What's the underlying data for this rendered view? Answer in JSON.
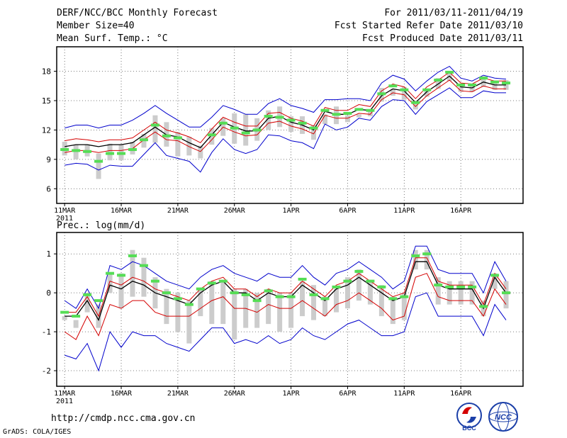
{
  "header": {
    "title": "DERF/NCC/BCC Monthly Forecast",
    "members": "Member Size=40",
    "var_top": "Mean Surf. Temp.: °C",
    "period": "For 2011/03/11-2011/04/19",
    "refer": "Fcst Started Refer Date 2011/03/10",
    "produced": "Fcst Produced Date 2011/03/11"
  },
  "footer": {
    "url": "http://cmdp.ncc.cma.gov.cn",
    "grads": "GrADS: COLA/IGES",
    "logo_bcc": "BCC",
    "logo_ncc": "NCC"
  },
  "colors": {
    "mean": "#000000",
    "spread": "#d40000",
    "extreme": "#0000cc",
    "obs": "#55dd55",
    "box": "#cccccc",
    "grid": "#555555"
  },
  "chart_data": [
    {
      "type": "line",
      "title": "Mean Surf. Temp.: °C",
      "ylim": [
        4.5,
        20.5
      ],
      "yticks": [
        6,
        9,
        12,
        15,
        18
      ],
      "xlim": [
        0.3,
        41.5
      ],
      "x_ticks": [
        1,
        6,
        11,
        16,
        21,
        26,
        31,
        36
      ],
      "x_tick_labels": [
        "11MAR",
        "16MAR",
        "21MAR",
        "26MAR",
        "1APR",
        "6APR",
        "11APR",
        "16APR"
      ],
      "year_label": "2011",
      "mean": [
        10.3,
        10.5,
        10.5,
        10.3,
        10.5,
        10.5,
        10.7,
        11.5,
        12.3,
        11.5,
        11.3,
        10.7,
        10.2,
        11.5,
        12.8,
        12.3,
        11.9,
        11.9,
        13.2,
        13.4,
        12.8,
        12.5,
        12.0,
        13.9,
        13.6,
        13.6,
        14.1,
        14.0,
        15.5,
        16.2,
        16.0,
        14.8,
        15.9,
        16.7,
        17.5,
        16.4,
        16.3,
        16.9,
        16.6,
        16.6
      ],
      "upper": [
        10.9,
        11.1,
        11.0,
        10.8,
        11.0,
        11.0,
        11.2,
        12.0,
        12.8,
        12.0,
        11.7,
        11.3,
        10.7,
        12.1,
        13.3,
        12.8,
        12.4,
        12.4,
        13.7,
        13.8,
        13.2,
        12.9,
        12.4,
        14.3,
        14.0,
        14.0,
        14.6,
        14.4,
        16.0,
        16.7,
        16.4,
        15.2,
        16.4,
        17.1,
        17.9,
        16.8,
        16.7,
        17.3,
        17.0,
        17.0
      ],
      "lower": [
        9.7,
        9.9,
        9.9,
        9.7,
        9.9,
        9.9,
        10.1,
        11.0,
        11.8,
        11.0,
        10.9,
        10.3,
        9.8,
        11.0,
        12.3,
        11.8,
        11.4,
        11.5,
        12.7,
        12.9,
        12.4,
        12.1,
        11.6,
        13.5,
        13.2,
        13.2,
        13.7,
        13.6,
        15.1,
        15.8,
        15.6,
        14.4,
        15.5,
        16.3,
        17.1,
        16.0,
        15.9,
        16.5,
        16.2,
        16.2
      ],
      "max": [
        12.2,
        12.5,
        12.5,
        12.2,
        12.5,
        12.5,
        13.0,
        13.7,
        14.5,
        13.7,
        13.0,
        12.3,
        12.3,
        13.3,
        14.5,
        14.1,
        13.6,
        13.6,
        14.7,
        15.2,
        14.5,
        14.2,
        13.8,
        15.1,
        15.1,
        15.2,
        15.2,
        15.0,
        16.8,
        17.6,
        17.2,
        16.0,
        17.0,
        17.9,
        18.5,
        17.3,
        17.0,
        17.6,
        17.3,
        17.2
      ],
      "min": [
        8.4,
        8.6,
        8.5,
        7.9,
        8.4,
        8.3,
        8.3,
        9.5,
        10.7,
        9.4,
        9.1,
        8.8,
        7.7,
        9.7,
        11.1,
        10.0,
        9.6,
        10.0,
        11.5,
        11.4,
        10.9,
        10.7,
        10.1,
        12.6,
        12.0,
        12.3,
        13.2,
        13.0,
        14.4,
        15.1,
        15.0,
        13.6,
        14.9,
        15.6,
        16.3,
        15.3,
        15.3,
        16.0,
        15.8,
        15.8
      ],
      "box_high": [
        10.8,
        10.5,
        10.5,
        9.6,
        10.6,
        10.5,
        10.8,
        11.6,
        13.5,
        12.8,
        11.8,
        11.3,
        10.4,
        12.2,
        13.2,
        13.7,
        13.6,
        13.2,
        14.0,
        14.4,
        13.4,
        13.4,
        12.5,
        13.6,
        14.4,
        13.5,
        13.6,
        14.1,
        16.3,
        16.2,
        16.4,
        15.0,
        16.1,
        17.3,
        17.8,
        16.4,
        16.6,
        17.5,
        17.0,
        17.1
      ],
      "box_low": [
        9.4,
        9.0,
        9.3,
        7.0,
        8.9,
        8.9,
        9.5,
        10.2,
        10.7,
        10.3,
        9.3,
        9.4,
        9.1,
        10.5,
        11.4,
        10.6,
        10.4,
        10.9,
        12.0,
        12.3,
        11.8,
        11.6,
        11.0,
        12.6,
        12.6,
        12.8,
        13.3,
        13.4,
        14.9,
        15.5,
        15.1,
        14.1,
        15.4,
        16.2,
        17.0,
        15.9,
        15.9,
        16.4,
        16.1,
        16.1
      ],
      "obs": [
        10.0,
        9.9,
        9.8,
        8.8,
        9.6,
        9.6,
        10.0,
        11.0,
        12.5,
        11.4,
        11.2,
        null,
        null,
        11.5,
        12.7,
        12.2,
        11.7,
        12.0,
        13.4,
        13.3,
        13.0,
        12.7,
        12.2,
        14.0,
        13.6,
        13.7,
        14.1,
        14.0,
        15.7,
        16.5,
        16.1,
        14.8,
        16.1,
        17.1,
        17.9,
        16.6,
        16.6,
        17.3,
        16.9,
        16.8
      ]
    },
    {
      "type": "line",
      "title": "Prec.: log(mm/d)",
      "ylim": [
        -2.4,
        1.55
      ],
      "yticks": [
        -2,
        -1,
        0,
        1
      ],
      "xlim": [
        0.3,
        41.5
      ],
      "x_ticks": [
        1,
        6,
        11,
        16,
        21,
        26,
        31,
        36
      ],
      "x_tick_labels": [
        "11MAR",
        "16MAR",
        "21MAR",
        "26MAR",
        "1APR",
        "6APR",
        "11APR",
        "16APR"
      ],
      "year_label": "2011",
      "mean": [
        -0.6,
        -0.6,
        -0.2,
        -0.7,
        0.2,
        0.1,
        0.3,
        0.2,
        0.0,
        -0.1,
        -0.2,
        -0.3,
        0.0,
        0.2,
        0.3,
        0.0,
        0.0,
        -0.2,
        0.0,
        -0.1,
        -0.1,
        0.2,
        0.0,
        -0.2,
        0.1,
        0.2,
        0.4,
        0.2,
        0.0,
        -0.2,
        -0.1,
        0.8,
        0.8,
        0.2,
        0.1,
        0.1,
        0.1,
        -0.4,
        0.4,
        0.0
      ],
      "upper": [
        -0.5,
        -0.5,
        -0.1,
        -0.6,
        0.3,
        0.2,
        0.4,
        0.3,
        0.1,
        0.0,
        -0.1,
        -0.2,
        0.1,
        0.3,
        0.4,
        0.1,
        0.1,
        -0.1,
        0.1,
        0.0,
        0.0,
        0.3,
        0.1,
        -0.1,
        0.2,
        0.3,
        0.5,
        0.3,
        0.1,
        -0.1,
        0.0,
        0.9,
        0.9,
        0.3,
        0.2,
        0.2,
        0.2,
        -0.3,
        0.5,
        0.1
      ],
      "lower": [
        -1.0,
        -1.2,
        -0.6,
        -1.1,
        -0.3,
        -0.4,
        -0.2,
        -0.2,
        -0.5,
        -0.6,
        -0.6,
        -0.6,
        -0.4,
        -0.2,
        -0.1,
        -0.4,
        -0.4,
        -0.5,
        -0.3,
        -0.4,
        -0.4,
        -0.2,
        -0.4,
        -0.6,
        -0.3,
        -0.2,
        0.0,
        -0.2,
        -0.4,
        -0.7,
        -0.6,
        0.4,
        0.5,
        -0.1,
        -0.2,
        -0.2,
        -0.2,
        -0.6,
        0.1,
        -0.3
      ],
      "max": [
        -0.2,
        -0.4,
        0.1,
        -0.4,
        0.7,
        0.6,
        0.8,
        0.7,
        0.5,
        0.3,
        0.2,
        0.1,
        0.4,
        0.6,
        0.7,
        0.5,
        0.4,
        0.3,
        0.5,
        0.4,
        0.4,
        0.7,
        0.4,
        0.2,
        0.5,
        0.6,
        0.8,
        0.6,
        0.4,
        0.1,
        0.3,
        1.2,
        1.2,
        0.6,
        0.5,
        0.5,
        0.5,
        0.0,
        0.8,
        0.3
      ],
      "min": [
        -1.6,
        -1.7,
        -1.3,
        -2.0,
        -1.0,
        -1.4,
        -1.0,
        -1.1,
        -1.1,
        -1.3,
        -1.4,
        -1.5,
        -1.2,
        -0.9,
        -0.9,
        -1.3,
        -1.2,
        -1.3,
        -1.1,
        -1.3,
        -1.2,
        -0.9,
        -1.1,
        -1.2,
        -1.0,
        -0.8,
        -0.7,
        -0.9,
        -1.1,
        -1.1,
        -1.0,
        -0.1,
        0.0,
        -0.6,
        -0.6,
        -0.6,
        -0.6,
        -1.1,
        -0.3,
        -0.7
      ],
      "box_high": [
        -0.6,
        -0.9,
        0.0,
        -0.3,
        0.5,
        0.5,
        1.1,
        0.9,
        0.4,
        0.1,
        0.0,
        -0.2,
        0.1,
        0.3,
        0.3,
        0.1,
        0.1,
        0.0,
        0.1,
        0.0,
        0.0,
        0.3,
        0.2,
        -0.1,
        0.1,
        0.4,
        0.6,
        0.3,
        0.2,
        -0.1,
        0.0,
        1.1,
        1.1,
        0.4,
        0.3,
        0.3,
        0.3,
        -0.2,
        0.5,
        0.3
      ],
      "box_low": [
        -0.7,
        -0.7,
        -0.5,
        -0.9,
        0.0,
        -0.4,
        -0.1,
        -0.1,
        -0.4,
        -0.8,
        -1.0,
        -1.3,
        -0.6,
        -0.8,
        -0.8,
        -1.2,
        -0.9,
        -0.9,
        -0.8,
        -1.0,
        -0.9,
        -0.6,
        -0.7,
        -0.6,
        -0.5,
        -0.4,
        -0.2,
        -0.3,
        -0.6,
        -0.8,
        -0.7,
        0.6,
        0.6,
        -0.3,
        -0.3,
        -0.3,
        -0.3,
        -0.6,
        0.1,
        -0.4
      ],
      "obs": [
        -0.5,
        -0.6,
        -0.05,
        -0.2,
        0.5,
        0.45,
        0.95,
        0.7,
        0.3,
        0.0,
        -0.15,
        -0.3,
        0.1,
        0.25,
        0.3,
        0.0,
        -0.05,
        -0.2,
        0.05,
        -0.1,
        -0.1,
        0.35,
        -0.05,
        -0.15,
        0.15,
        0.3,
        0.55,
        0.3,
        0.15,
        -0.15,
        -0.1,
        0.95,
        1.0,
        0.2,
        0.15,
        0.15,
        0.15,
        -0.35,
        0.45,
        0.0
      ]
    }
  ]
}
